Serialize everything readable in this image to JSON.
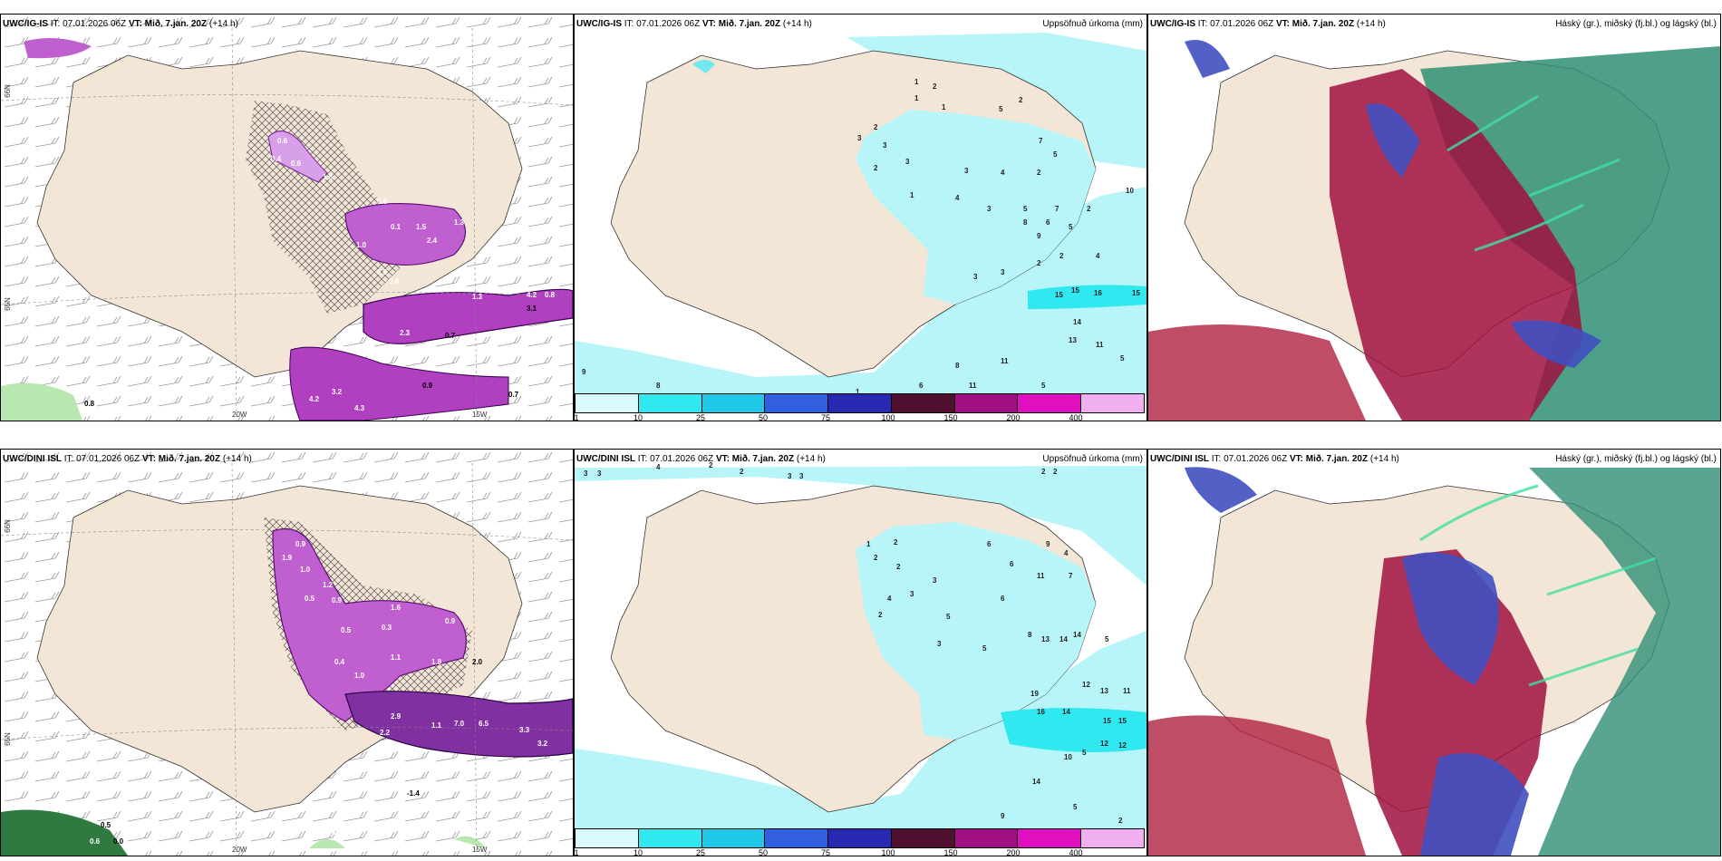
{
  "colors": {
    "land": "#f3e6d6",
    "precip": "#d8a0e8",
    "precip_strong": "#b040c0",
    "cyan_light": "#b8f5f8",
    "cyan": "#6fe8f0",
    "cloud_high": "#2f8f76",
    "cloud_mid": "#a01040",
    "cloud_low": "#4050c0"
  },
  "panels": {
    "top_left": {
      "model": "UWC/IG-IS",
      "it": "IT: 07.01.2026 06Z",
      "vt_label": "VT:",
      "vt": "Mið. 7.jan. 20Z",
      "lead": "(+14 h)",
      "lon_labels": [
        "20W",
        "15W"
      ],
      "lat_labels": [
        "66N",
        "65N"
      ],
      "values": [
        "0.6",
        "0.4",
        "0.6",
        "1.6",
        "0.6",
        "0.1",
        "1.5",
        "2.4",
        "1.3",
        "1.0",
        "0.5",
        "0.4",
        "2.3",
        "1.3",
        "0.7",
        "0.9",
        "0.4",
        "0.9",
        "4.2",
        "3.2",
        "4.3",
        "0.8",
        "0.7",
        "3.1",
        "4.2",
        "0.8"
      ]
    },
    "top_mid": {
      "model": "UWC/IG-IS",
      "it": "IT: 07.01.2026 06Z",
      "vt_label": "VT:",
      "vt": "Mið. 7.jan. 20Z",
      "lead": "(+14 h)",
      "title": "Uppsöfnuð úrkoma (mm)",
      "values": [
        "1",
        "2",
        "1",
        "1",
        "5",
        "2",
        "3",
        "2",
        "3",
        "2",
        "7",
        "5",
        "3",
        "4",
        "3",
        "2",
        "1",
        "4",
        "3",
        "5",
        "7",
        "2",
        "6",
        "5",
        "9",
        "8",
        "2",
        "10",
        "3",
        "3",
        "2",
        "4",
        "15",
        "15",
        "16",
        "15",
        "14",
        "13",
        "11",
        "11",
        "5",
        "8",
        "6",
        "11",
        "5",
        "9",
        "8",
        "1"
      ]
    },
    "top_right": {
      "model": "UWC/IG-IS",
      "it": "IT: 07.01.2026 06Z",
      "vt_label": "VT:",
      "vt": "Mið. 7.jan. 20Z",
      "lead": "(+14 h)",
      "title": "Háský (gr.), miðský (fj.bl.) og lágský (bl.)"
    },
    "bottom_left": {
      "model": "UWC/DINI ISL",
      "it": "IT: 07.01.2026 06Z",
      "vt_label": "VT:",
      "vt": "Mið. 7.jan. 20Z",
      "lead": "(+14 h)",
      "lon_labels": [
        "20W",
        "15W"
      ],
      "lat_labels": [
        "66N",
        "65N"
      ],
      "values": [
        "0.9",
        "1.9",
        "1.0",
        "1.2",
        "0.5",
        "0.9",
        "1.6",
        "0.9",
        "0.5",
        "0.3",
        "1.1",
        "0.4",
        "1.0",
        "1.8",
        "2.0",
        "2.9",
        "2.2",
        "3.0",
        "1.1",
        "7.0",
        "6.5",
        "3.3",
        "3.2",
        "-1.4",
        "0.5",
        "0.6",
        "0.0",
        "0.3"
      ]
    },
    "bottom_mid": {
      "model": "UWC/DINI ISL",
      "it": "IT: 07.01.2026 06Z",
      "vt_label": "VT:",
      "vt": "Mið. 7.jan. 20Z",
      "lead": "(+14 h)",
      "title": "Uppsöfnuð úrkoma (mm)",
      "values": [
        "3",
        "3",
        "4",
        "2",
        "2",
        "3",
        "3",
        "2",
        "2",
        "1",
        "2",
        "2",
        "2",
        "6",
        "9",
        "4",
        "3",
        "2",
        "6",
        "11",
        "7",
        "5",
        "4",
        "3",
        "5",
        "6",
        "8",
        "13",
        "14",
        "14",
        "5",
        "12",
        "13",
        "11",
        "14",
        "15",
        "19",
        "16",
        "12",
        "15",
        "10",
        "12",
        "9",
        "5",
        "2",
        "14",
        "3",
        "5"
      ]
    },
    "bottom_right": {
      "model": "UWC/DINI ISL",
      "it": "IT: 07.01.2026 06Z",
      "vt_label": "VT:",
      "vt": "Mið. 7.jan. 20Z",
      "lead": "(+14 h)",
      "title": "Háský (gr.), miðský (fj.bl.) og lágský (bl.)"
    }
  },
  "colorbar": {
    "labels": [
      "1",
      "10",
      "25",
      "50",
      "75",
      "100",
      "150",
      "200",
      "400"
    ],
    "colors": [
      "#d8fafc",
      "#30e8f0",
      "#20c8e8",
      "#3060e0",
      "#2828b0",
      "#501030",
      "#a01080",
      "#e010c0",
      "#f0b0f0"
    ]
  }
}
